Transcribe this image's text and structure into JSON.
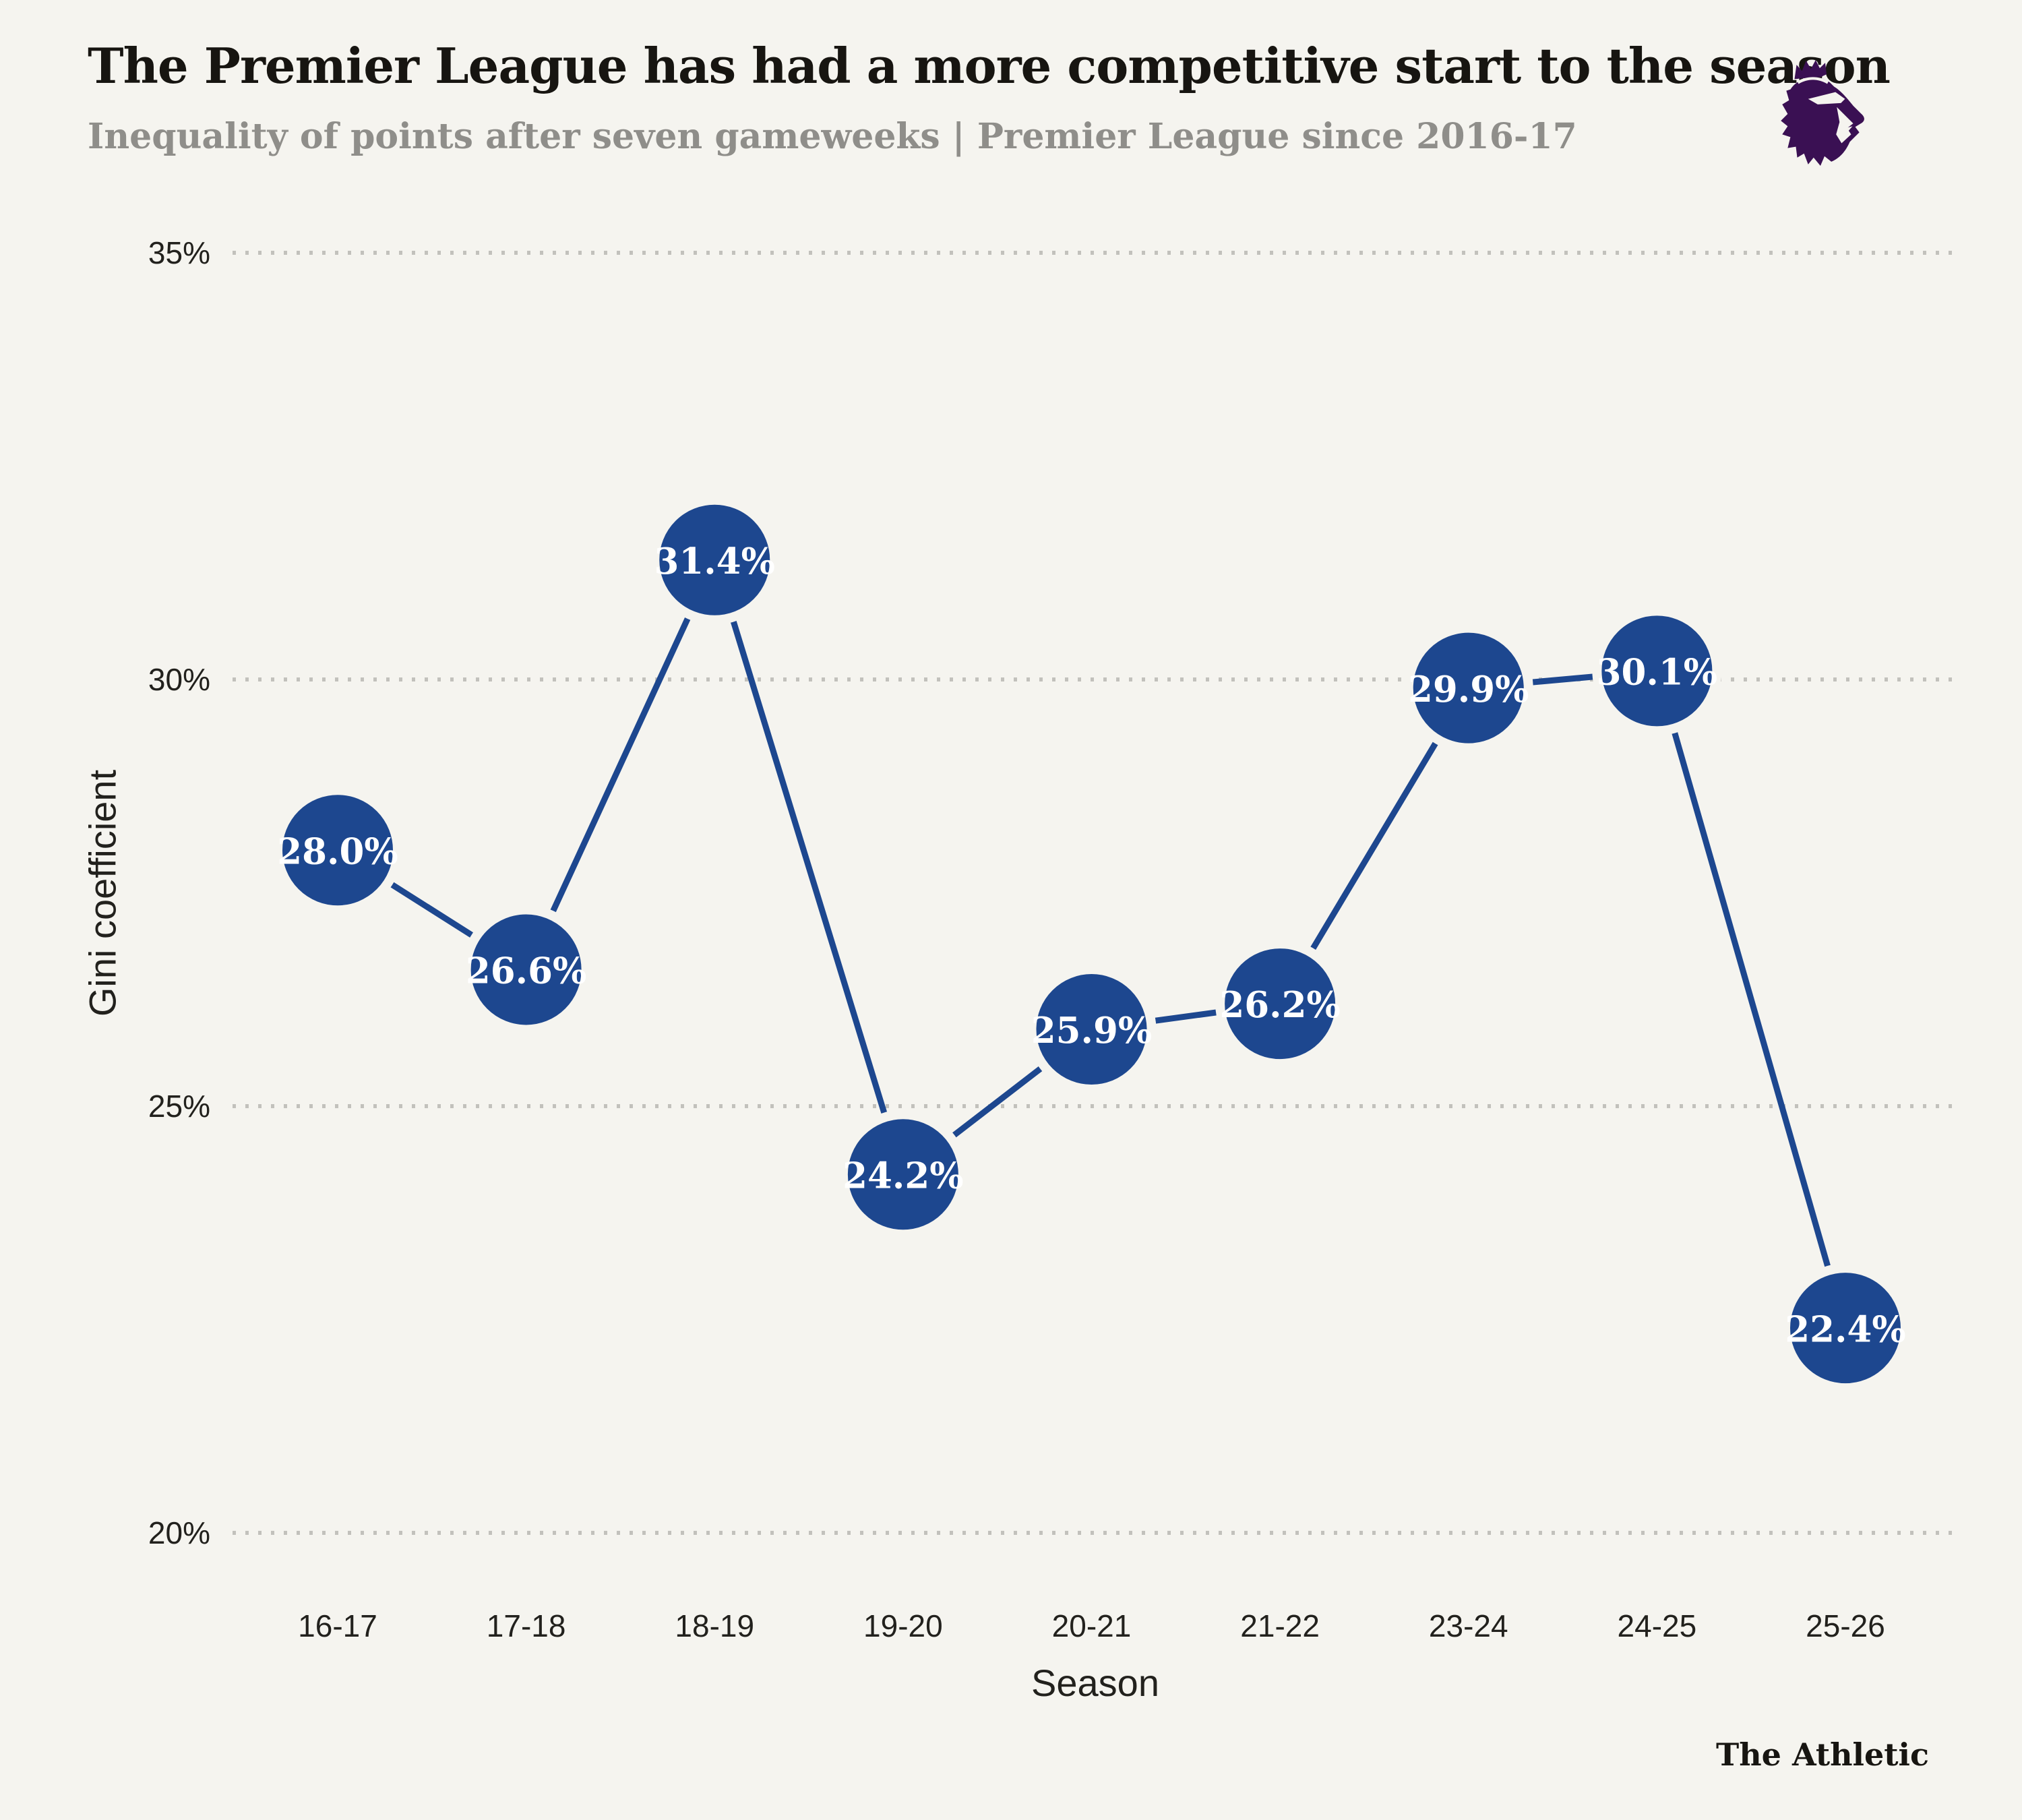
{
  "header": {
    "title": "The Premier League has had a more competitive start to the season",
    "subtitle": "Inequality of points after seven gameweeks | Premier League since 2016-17"
  },
  "footer": {
    "credit": "The Athletic"
  },
  "icons": {
    "league_logo": "premier-league-lion-crest-icon"
  },
  "colors": {
    "background": "#f5f4ef",
    "series_blue": "#1d478f",
    "gridline_gray": "#c2c1bc",
    "title_text": "#171511",
    "subtitle_text": "#8f8e8a",
    "axis_text": "#22211d",
    "marker_label_text": "#ffffff",
    "logo_purple": "#3a1053"
  },
  "chart_data": {
    "type": "line",
    "categories": [
      "16-17",
      "17-18",
      "18-19",
      "19-20",
      "20-21",
      "21-22",
      "23-24",
      "24-25",
      "25-26"
    ],
    "values": [
      28.0,
      26.6,
      31.4,
      24.2,
      25.9,
      26.2,
      29.9,
      30.1,
      22.4
    ],
    "point_labels": [
      "28.0%",
      "26.6%",
      "31.4%",
      "24.2%",
      "25.9%",
      "26.2%",
      "29.9%",
      "30.1%",
      "22.4%"
    ],
    "title": "The Premier League has had a more competitive start to the season",
    "subtitle": "Inequality of points after seven gameweeks | Premier League since 2016-17",
    "xlabel": "Season",
    "ylabel": "Gini coefficient",
    "yticks": [
      {
        "value": 35,
        "label": "35%"
      },
      {
        "value": 30,
        "label": "30%"
      },
      {
        "value": 25,
        "label": "25%"
      },
      {
        "value": 20,
        "label": "20%"
      }
    ],
    "ylim": [
      20,
      35
    ],
    "grid": "horizontal-dotted",
    "legend": "none",
    "marker_style": "large filled circles with white value labels"
  }
}
